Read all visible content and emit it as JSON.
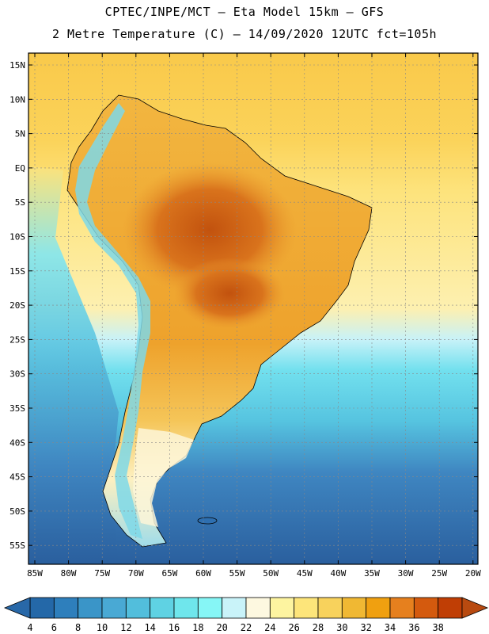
{
  "header": {
    "line1": "CPTEC/INPE/MCT –  Eta Model 15km – GFS",
    "line2": "2 Metre Temperature (C) – 14/09/2020 12UTC fct=105h"
  },
  "map": {
    "lat_labels": [
      "15N",
      "10N",
      "5N",
      "EQ",
      "5S",
      "10S",
      "15S",
      "20S",
      "25S",
      "30S",
      "35S",
      "40S",
      "45S",
      "50S",
      "55S"
    ],
    "lon_labels": [
      "85W",
      "80W",
      "75W",
      "70W",
      "65W",
      "60W",
      "55W",
      "50W",
      "45W",
      "40W",
      "35W",
      "30W",
      "25W",
      "20W"
    ],
    "colors": {
      "ocean_far": "#2a5f9e",
      "ocean_south": "#3f86c1",
      "ocean_mid": "#5ab8da",
      "ocean_cyan": "#6fe0ef",
      "ocean_light": "#b8f0f8",
      "warm_ocean": "#fde683",
      "land_base": "#f2b640",
      "land_hot": "#d9731c",
      "land_hotter": "#c2520e",
      "andes": "#7ed8e8",
      "patagonia": "#fdf6d8"
    }
  },
  "colorbar": {
    "ticks": [
      "4",
      "6",
      "8",
      "10",
      "12",
      "14",
      "16",
      "18",
      "20",
      "22",
      "24",
      "26",
      "28",
      "30",
      "32",
      "34",
      "36",
      "38"
    ],
    "colors": [
      "#2468a8",
      "#2e7fbc",
      "#3a95c8",
      "#49a9d4",
      "#52bedc",
      "#5fd2e3",
      "#6fe6ec",
      "#86f6f6",
      "#c9f3f9",
      "#fdf8e0",
      "#fdf4a0",
      "#fde57a",
      "#f8d25c",
      "#f0b833",
      "#f0a010",
      "#e6801e",
      "#d45a0e",
      "#c03e05"
    ],
    "low_arrow_color": "#2868a8",
    "high_arrow_color": "#b84a10"
  }
}
